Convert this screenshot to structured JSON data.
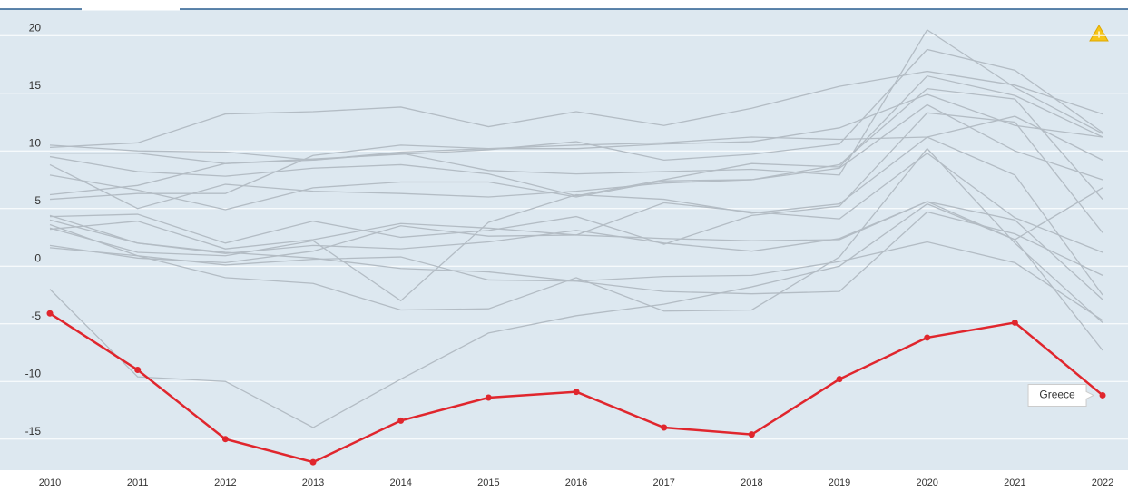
{
  "chart_data": {
    "type": "line",
    "categories": [
      "2010",
      "2011",
      "2012",
      "2013",
      "2014",
      "2015",
      "2016",
      "2017",
      "2018",
      "2019",
      "2020",
      "2021",
      "2022"
    ],
    "ylim": [
      -17.7,
      22.3
    ],
    "yticks": [
      -15,
      -10,
      -5,
      0,
      5,
      10,
      15,
      20
    ],
    "grid": true,
    "series": [
      {
        "color": "#b3bcc4",
        "values": [
          10.5,
          10.0,
          9.9,
          9.2,
          9.8,
          8.3,
          8.0,
          8.2,
          8.4,
          7.9,
          20.5,
          15.5,
          11.5
        ]
      },
      {
        "color": "#b3bcc4",
        "values": [
          10.3,
          10.7,
          13.2,
          13.4,
          13.8,
          12.1,
          13.4,
          12.2,
          13.7,
          15.6,
          16.9,
          15.7,
          13.2
        ]
      },
      {
        "color": "#b3bcc4",
        "values": [
          9.8,
          9.8,
          8.9,
          9.3,
          9.7,
          10.1,
          10.8,
          9.2,
          9.7,
          10.6,
          18.8,
          17.0,
          11.6
        ]
      },
      {
        "color": "#b3bcc4",
        "values": [
          9.5,
          8.2,
          7.8,
          8.5,
          8.8,
          8.0,
          6.1,
          7.5,
          8.9,
          8.6,
          16.5,
          14.8,
          11.2
        ]
      },
      {
        "color": "#b3bcc4",
        "values": [
          6.2,
          7.0,
          8.9,
          9.2,
          9.9,
          10.2,
          10.5,
          10.7,
          11.2,
          11.0,
          11.2,
          13.0,
          9.2
        ]
      },
      {
        "color": "#b3bcc4",
        "values": [
          5.8,
          6.3,
          6.3,
          9.6,
          10.5,
          10.2,
          10.2,
          10.6,
          10.8,
          12.0,
          14.9,
          12.2,
          11.2
        ]
      },
      {
        "color": "#b3bcc4",
        "values": [
          8.8,
          5.0,
          7.1,
          6.5,
          6.3,
          6.0,
          6.5,
          7.2,
          7.5,
          8.8,
          15.4,
          14.5,
          5.8
        ]
      },
      {
        "color": "#b3bcc4",
        "values": [
          7.9,
          6.6,
          4.9,
          6.8,
          7.3,
          7.3,
          6.0,
          7.4,
          7.5,
          8.5,
          14.0,
          10.0,
          7.5
        ]
      },
      {
        "color": "#b3bcc4",
        "values": [
          4.3,
          4.5,
          2.0,
          3.9,
          2.5,
          3.1,
          4.3,
          1.9,
          4.4,
          5.2,
          13.3,
          12.5,
          2.9
        ]
      },
      {
        "color": "#b3bcc4",
        "values": [
          3.2,
          3.9,
          1.5,
          2.3,
          3.7,
          3.3,
          2.7,
          5.5,
          4.7,
          4.1,
          9.8,
          4.2,
          1.2
        ]
      },
      {
        "color": "#b3bcc4",
        "values": [
          3.3,
          1.2,
          0.9,
          2.2,
          -3.0,
          3.8,
          6.2,
          5.8,
          4.6,
          5.4,
          11.2,
          7.9,
          -2.5
        ]
      },
      {
        "color": "#b3bcc4",
        "values": [
          1.8,
          0.7,
          0.3,
          1.3,
          3.5,
          2.6,
          2.7,
          2.4,
          2.2,
          2.3,
          5.6,
          4.0,
          -2.9
        ]
      },
      {
        "color": "#b3bcc4",
        "values": [
          1.6,
          0.9,
          -1.0,
          -1.5,
          -3.8,
          -3.7,
          -1.0,
          -3.9,
          -3.8,
          0.8,
          10.2,
          2.0,
          -4.9
        ]
      },
      {
        "color": "#b3bcc4",
        "values": [
          4.0,
          2.0,
          1.2,
          0.7,
          -0.2,
          -0.5,
          -1.3,
          -2.2,
          -2.4,
          -2.2,
          4.7,
          2.8,
          -0.8
        ]
      },
      {
        "color": "#b3bcc4",
        "values": [
          -2.0,
          -9.6,
          -10.0,
          -14.0,
          -9.8,
          -5.8,
          -4.3,
          -3.3,
          -1.8,
          0.0,
          5.4,
          2.3,
          6.8
        ]
      },
      {
        "color": "#b3bcc4",
        "values": [
          3.6,
          0.9,
          0.1,
          0.6,
          0.8,
          -1.2,
          -1.3,
          -0.9,
          -0.8,
          0.4,
          2.1,
          0.3,
          -4.7
        ]
      },
      {
        "color": "#b3bcc4",
        "values": [
          4.4,
          2.0,
          1.1,
          1.8,
          1.5,
          2.1,
          3.1,
          2.0,
          1.3,
          2.4,
          5.6,
          2.3,
          -7.3
        ]
      },
      {
        "name": "Greece",
        "color": "#e0262d",
        "values": [
          -4.1,
          -9.0,
          -15.0,
          -17.0,
          -13.4,
          -11.4,
          -10.9,
          -14.0,
          -14.6,
          -9.8,
          -6.2,
          -4.9,
          -11.2
        ]
      }
    ]
  }
}
